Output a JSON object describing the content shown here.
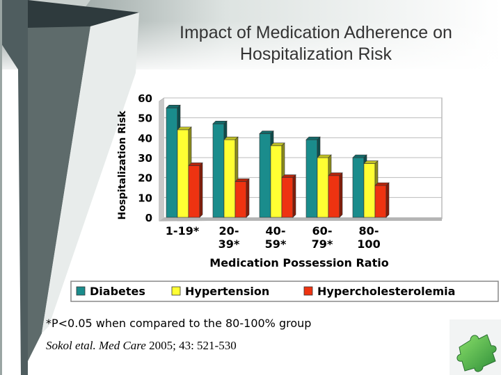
{
  "slide": {
    "title_line1": "Impact of Medication Adherence on",
    "title_line2": "Hospitalization Risk",
    "footnote": "*P<0.05 when compared to the 80-100% group",
    "citation": {
      "authors": "Sokol etal.",
      "journal": "Med Care",
      "details": "2005; 43: 521-530"
    },
    "colors": {
      "background_dark": "#2e3a3d",
      "background_gradient_light": "#eef2f1",
      "title_text": "#333333"
    },
    "icons": [
      "puzzle-icon"
    ]
  },
  "chart_data": {
    "type": "bar",
    "title": "",
    "xlabel": "Medication Possession Ratio",
    "ylabel": "Hospitalization Risk",
    "ylim": [
      0,
      60
    ],
    "yticks": [
      "0",
      "10",
      "20",
      "30",
      "40",
      "50",
      "60"
    ],
    "grid": true,
    "legend_position": "bottom",
    "categories": [
      {
        "line1": "1-19*",
        "line2": ""
      },
      {
        "line1": "20-",
        "line2": "39*"
      },
      {
        "line1": "40-",
        "line2": "59*"
      },
      {
        "line1": "60-",
        "line2": "79*"
      },
      {
        "line1": "80-",
        "line2": "100"
      }
    ],
    "series": [
      {
        "name": "Diabetes",
        "color": "#1a8c8c",
        "values": [
          55,
          47,
          42,
          39,
          30
        ]
      },
      {
        "name": "Hypertension",
        "color": "#ffff33",
        "values": [
          44,
          39,
          36,
          30,
          27
        ]
      },
      {
        "name": "Hypercholesterolemia",
        "color": "#ee3311",
        "values": [
          26,
          18,
          20,
          21,
          16
        ]
      }
    ]
  }
}
